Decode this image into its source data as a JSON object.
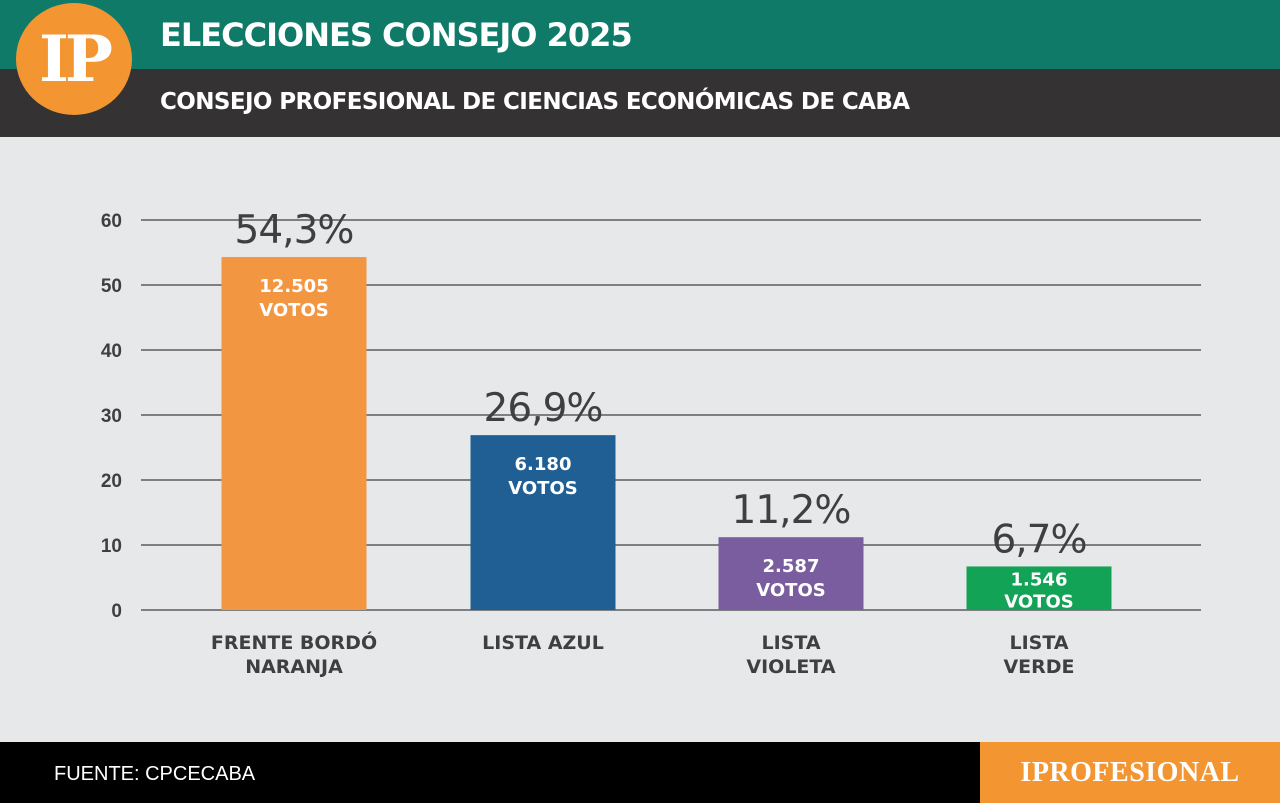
{
  "header": {
    "logo_text": "IP",
    "title": "ELECCIONES CONSEJO 2025",
    "subtitle": "CONSEJO PROFESIONAL DE CIENCIAS ECONÓMICAS DE CABA"
  },
  "footer": {
    "source": "FUENTE: CPCECABA",
    "brand": "IPROFESIONAL"
  },
  "colors": {
    "header_top": "#0f7a68",
    "header_bottom": "#353233",
    "accent": "#f39632",
    "background": "#e6e8ea"
  },
  "chart_data": {
    "type": "bar",
    "title": "",
    "xlabel": "",
    "ylabel": "",
    "ylim": [
      0,
      60
    ],
    "yticks": [
      "0",
      "10",
      "20",
      "30",
      "40",
      "50",
      "60"
    ],
    "grid": true,
    "categories": [
      [
        "FRENTE BORDÓ",
        "NARANJA"
      ],
      [
        "LISTA AZUL"
      ],
      [
        "LISTA",
        "VIOLETA"
      ],
      [
        "LISTA",
        "VERDE"
      ]
    ],
    "values": [
      54.3,
      26.9,
      11.2,
      6.7
    ],
    "value_labels": [
      "54,3%",
      "26,9%",
      "11,2%",
      "6,7%"
    ],
    "votes": [
      "12.505",
      "6.180",
      "2.587",
      "1.546"
    ],
    "votes_unit": "VOTOS",
    "bar_colors": [
      "#f39641",
      "#1f5f94",
      "#7a5d9e",
      "#13a356"
    ]
  }
}
